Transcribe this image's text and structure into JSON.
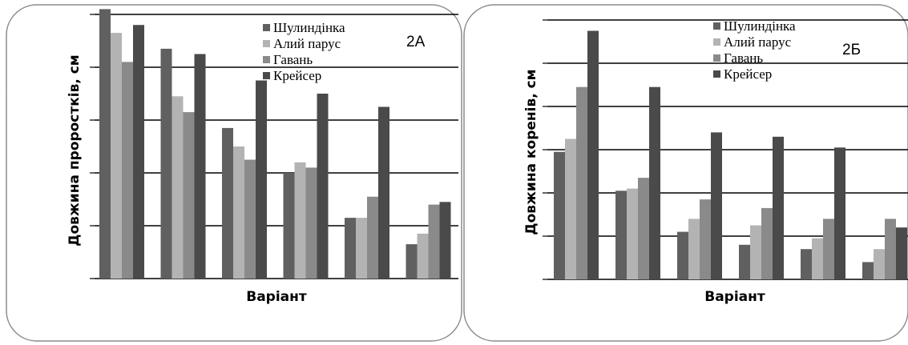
{
  "chart_data": [
    {
      "type": "bar",
      "title": "2А",
      "xlabel": "Варіант",
      "ylabel": "Довжина проростків, см",
      "ylim": [
        0,
        10
      ],
      "grid": true,
      "legend_position": "top-right",
      "categories": [
        "",
        "",
        "",
        "",
        "",
        ""
      ],
      "series": [
        {
          "name": "Шулиндінка",
          "color": "#606060",
          "values": [
            10.2,
            8.7,
            5.7,
            4.0,
            2.3,
            1.3
          ]
        },
        {
          "name": "Алий парус",
          "color": "#b3b3b3",
          "values": [
            9.3,
            6.9,
            5.0,
            4.4,
            2.3,
            1.7
          ]
        },
        {
          "name": "Гавань",
          "color": "#8a8a8a",
          "values": [
            8.2,
            6.3,
            4.5,
            4.2,
            3.1,
            2.8
          ]
        },
        {
          "name": "Крейсер",
          "color": "#4a4a4a",
          "values": [
            9.6,
            8.5,
            7.5,
            7.0,
            6.5,
            2.9
          ]
        }
      ]
    },
    {
      "type": "bar",
      "title": "2Б",
      "xlabel": "Варіант",
      "ylabel": "Довжина коренів, см",
      "ylim": [
        0,
        12
      ],
      "grid": true,
      "legend_position": "top-right",
      "categories": [
        "",
        "",
        "",
        "",
        "",
        ""
      ],
      "series": [
        {
          "name": "Шулиндінка",
          "color": "#606060",
          "values": [
            5.9,
            4.1,
            2.2,
            1.6,
            1.4,
            0.8
          ]
        },
        {
          "name": "Алий парус",
          "color": "#b3b3b3",
          "values": [
            6.5,
            4.2,
            2.8,
            2.5,
            1.9,
            1.4
          ]
        },
        {
          "name": "Гавань",
          "color": "#8a8a8a",
          "values": [
            8.9,
            4.7,
            3.7,
            3.3,
            2.8,
            2.8
          ]
        },
        {
          "name": "Крейсер",
          "color": "#4a4a4a",
          "values": [
            11.5,
            8.9,
            6.8,
            6.6,
            6.1,
            2.4
          ]
        }
      ]
    }
  ]
}
